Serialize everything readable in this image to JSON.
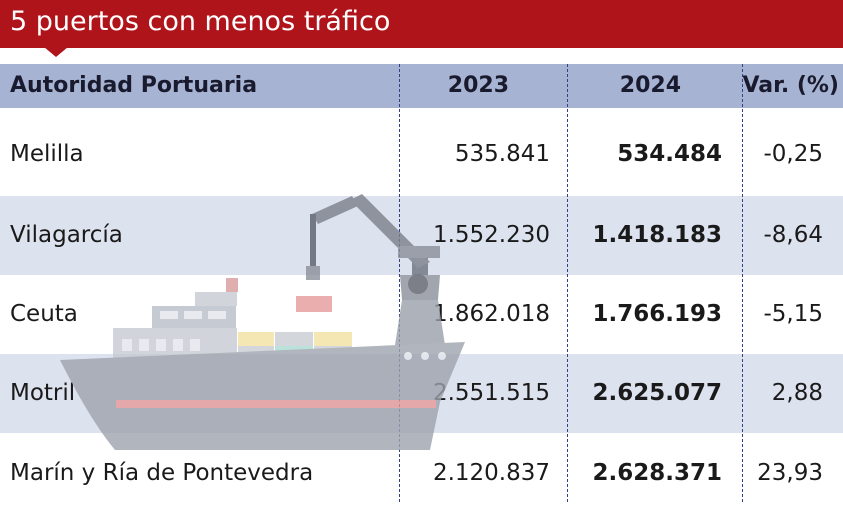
{
  "title": "5 puertos con menos tráfico",
  "columns": [
    "Autoridad Portuaria",
    "2023",
    "2024",
    "Var. (%)"
  ],
  "rows": [
    {
      "port": "Melilla",
      "y2023": "535.841",
      "y2024": "534.484",
      "var": "-0,25"
    },
    {
      "port": "Vilagarcía",
      "y2023": "1.552.230",
      "y2024": "1.418.183",
      "var": "-8,64"
    },
    {
      "port": "Ceuta",
      "y2023": "1.862.018",
      "y2024": "1.766.193",
      "var": "-5,15"
    },
    {
      "port": "Motril",
      "y2023": "2.551.515",
      "y2024": "2.625.077",
      "var": "2,88"
    },
    {
      "port": "Marín y Ría de Pontevedra",
      "y2023": "2.120.837",
      "y2024": "2.628.371",
      "var": "23,93"
    }
  ],
  "colors": {
    "title_bar": "#b0141b",
    "header_bg": "#a7b3d2",
    "stripe_bg": "#dde2ef",
    "divider": "#34408a"
  },
  "chart_data": {
    "type": "table",
    "title": "5 puertos con menos tráfico",
    "columns": [
      "Autoridad Portuaria",
      "2023",
      "2024",
      "Var. (%)"
    ],
    "categories": [
      "Melilla",
      "Vilagarcía",
      "Ceuta",
      "Motril",
      "Marín y Ría de Pontevedra"
    ],
    "series": [
      {
        "name": "2023",
        "values": [
          535841,
          1552230,
          1862018,
          2551515,
          2120837
        ]
      },
      {
        "name": "2024",
        "values": [
          534484,
          1418183,
          1766193,
          2625077,
          2628371
        ]
      },
      {
        "name": "Var. (%)",
        "values": [
          -0.25,
          -8.64,
          -5.15,
          2.88,
          23.93
        ]
      }
    ]
  }
}
